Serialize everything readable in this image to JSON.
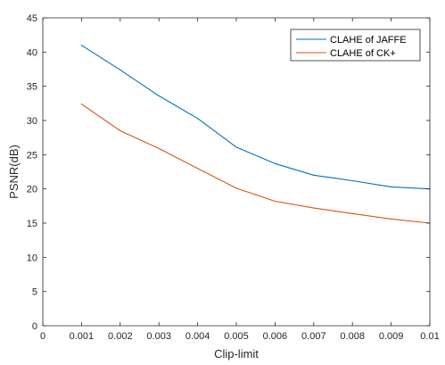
{
  "chart_data": {
    "type": "line",
    "title": "",
    "xlabel": "Clip-limit",
    "ylabel": "PSNR(dB)",
    "xlim": [
      0,
      0.01
    ],
    "ylim": [
      0,
      45
    ],
    "xticks": [
      0,
      0.001,
      0.002,
      0.003,
      0.004,
      0.005,
      0.006,
      0.007,
      0.008,
      0.009,
      0.01
    ],
    "xtick_labels": [
      "0",
      "0.001",
      "0.002",
      "0.003",
      "0.004",
      "0.005",
      "0.006",
      "0.007",
      "0.008",
      "0.009",
      "0.01"
    ],
    "yticks": [
      0,
      5,
      10,
      15,
      20,
      25,
      30,
      35,
      40,
      45
    ],
    "ytick_labels": [
      "0",
      "5",
      "10",
      "15",
      "20",
      "25",
      "30",
      "35",
      "40",
      "45"
    ],
    "grid": false,
    "legend_position": "top-right",
    "x": [
      0.001,
      0.002,
      0.003,
      0.004,
      0.005,
      0.006,
      0.007,
      0.008,
      0.009,
      0.01
    ],
    "series": [
      {
        "name": "CLAHE of JAFFE",
        "color": "#0072BD",
        "values": [
          41.0,
          37.4,
          33.6,
          30.3,
          26.1,
          23.7,
          22.0,
          21.2,
          20.3,
          20.0
        ]
      },
      {
        "name": "CLAHE of CK+",
        "color": "#D95319",
        "values": [
          32.4,
          28.5,
          25.9,
          23.0,
          20.1,
          18.2,
          17.2,
          16.4,
          15.6,
          15.0
        ]
      }
    ]
  }
}
